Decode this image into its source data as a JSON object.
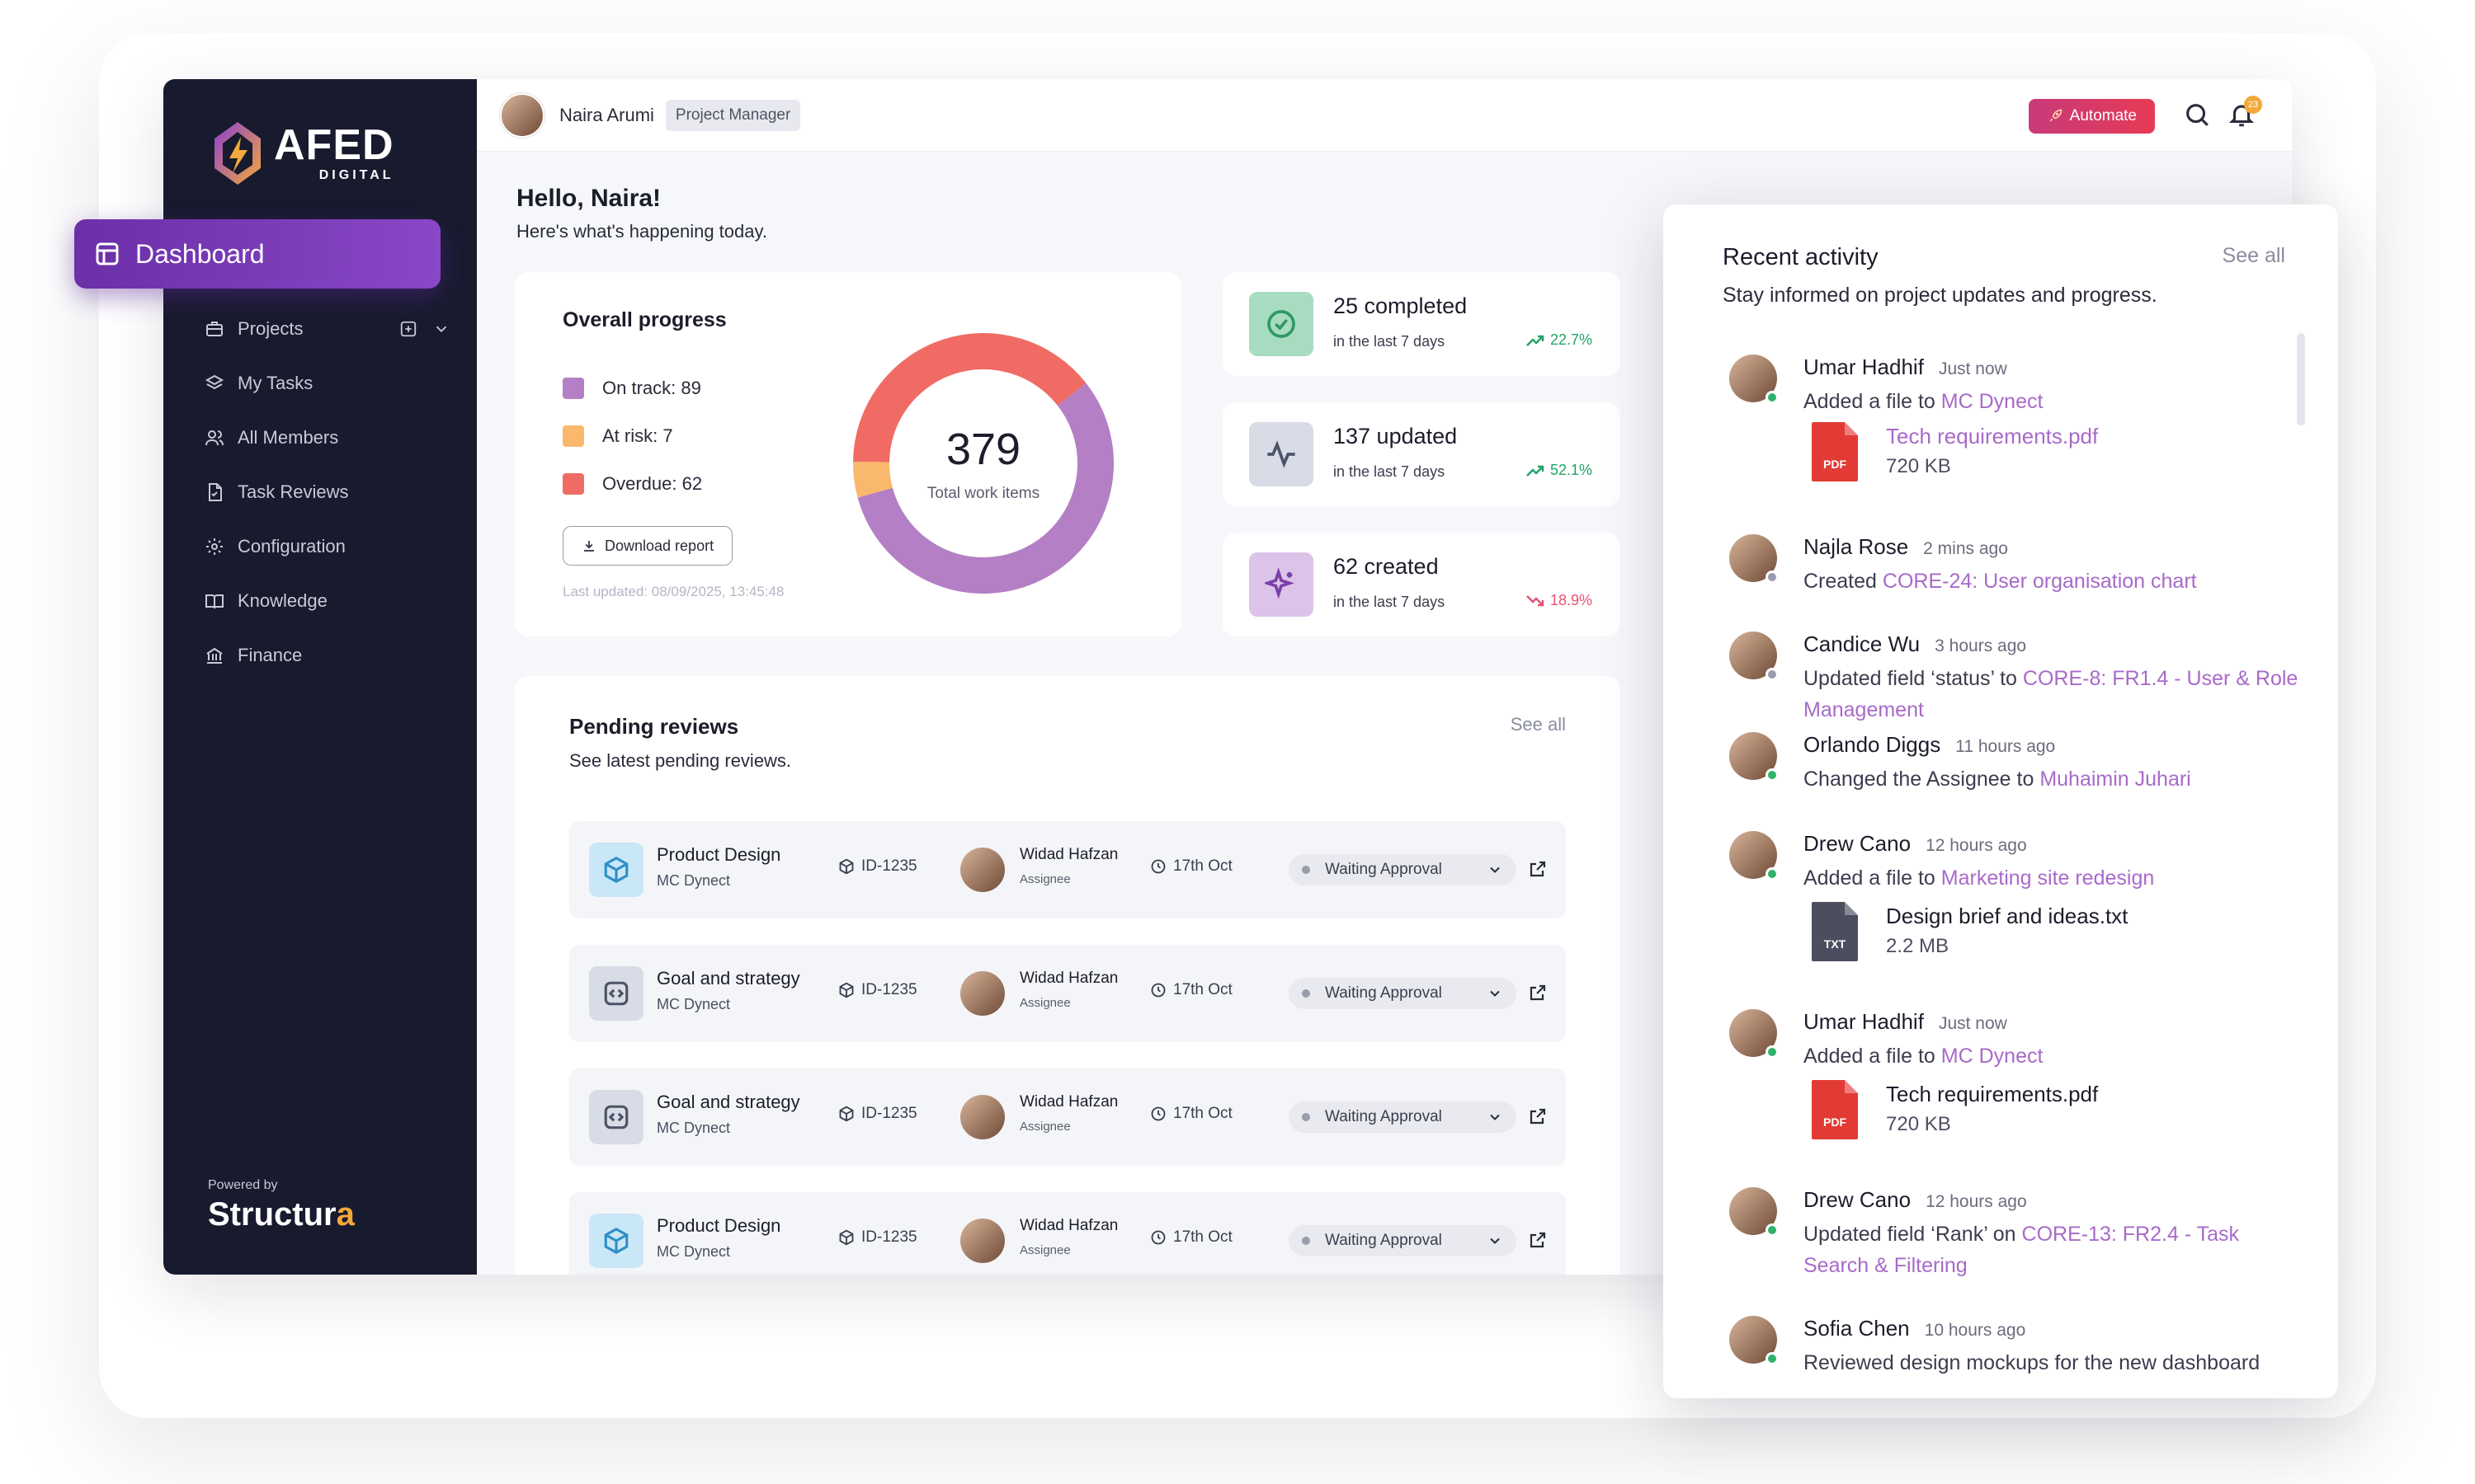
{
  "brand": {
    "name": "AFED",
    "tagline": "DIGITAL",
    "powered_by_label": "Powered by",
    "powered_by_name": "Structur",
    "powered_by_accent": "a"
  },
  "nav": {
    "active": "Dashboard",
    "items": [
      {
        "label": "Projects",
        "icon": "briefcase-icon"
      },
      {
        "label": "My Tasks",
        "icon": "layers-icon"
      },
      {
        "label": "All Members",
        "icon": "users-icon"
      },
      {
        "label": "Task Reviews",
        "icon": "file-check-icon"
      },
      {
        "label": "Configuration",
        "icon": "gear-icon"
      },
      {
        "label": "Knowledge",
        "icon": "book-icon"
      },
      {
        "label": "Finance",
        "icon": "bank-icon"
      }
    ]
  },
  "topbar": {
    "user_name": "Naira Arumi",
    "role": "Project Manager",
    "automate_label": "Automate",
    "notification_count": "23"
  },
  "greeting": {
    "title": "Hello, Naira!",
    "subtitle": "Here's what's happening today."
  },
  "progress": {
    "title": "Overall progress",
    "legend": [
      {
        "label": "On track: 89",
        "color": "#b47fc4"
      },
      {
        "label": "At risk: 7",
        "color": "#f9b86c"
      },
      {
        "label": "Overdue: 62",
        "color": "#ef6b64"
      }
    ],
    "download_label": "Download report",
    "last_updated": "Last updated: 08/09/2025, 13:45:48",
    "total": "379",
    "total_label": "Total work items",
    "chart_data": {
      "type": "pie",
      "categories": [
        "On track",
        "At risk",
        "Overdue"
      ],
      "values": [
        89,
        7,
        62
      ],
      "colors": [
        "#b47fc4",
        "#f9b86c",
        "#ef6b64"
      ]
    }
  },
  "stats": [
    {
      "main": "25 completed",
      "sub": "in the last 7 days",
      "trend": "22.7%",
      "direction": "up",
      "trend_color": "#21a366",
      "icon": "check-circle-icon",
      "icon_bg": "#a8dcc0",
      "icon_color": "#2f9a63"
    },
    {
      "main": "137 updated",
      "sub": "in the last 7 days",
      "trend": "52.1%",
      "direction": "up",
      "trend_color": "#21a366",
      "icon": "activity-icon",
      "icon_bg": "#d8dce6",
      "icon_color": "#4d5266"
    },
    {
      "main": "62 created",
      "sub": "in the last 7 days",
      "trend": "18.9%",
      "direction": "down",
      "trend_color": "#e5536f",
      "icon": "sparkle-icon",
      "icon_bg": "#dcc3ea",
      "icon_color": "#7b3fa8"
    }
  ],
  "pending": {
    "title": "Pending reviews",
    "subtitle": "See latest pending reviews.",
    "see_all": "See all",
    "rows": [
      {
        "name": "Product Design",
        "project": "MC Dynect",
        "id": "ID-1235",
        "assignee": "Widad Hafzan",
        "assignee_role": "Assignee",
        "date": "17th Oct",
        "status": "Waiting Approval",
        "icon": "cube-icon",
        "icon_bg": "#c9e7f7",
        "icon_color": "#2f8fc7"
      },
      {
        "name": "Goal and strategy",
        "project": "MC Dynect",
        "id": "ID-1235",
        "assignee": "Widad Hafzan",
        "assignee_role": "Assignee",
        "date": "17th Oct",
        "status": "Waiting Approval",
        "icon": "code-icon",
        "icon_bg": "#d8dce6",
        "icon_color": "#4d5266"
      },
      {
        "name": "Goal and strategy",
        "project": "MC Dynect",
        "id": "ID-1235",
        "assignee": "Widad Hafzan",
        "assignee_role": "Assignee",
        "date": "17th Oct",
        "status": "Waiting Approval",
        "icon": "code-icon",
        "icon_bg": "#d8dce6",
        "icon_color": "#4d5266"
      },
      {
        "name": "Product Design",
        "project": "MC Dynect",
        "id": "ID-1235",
        "assignee": "Widad Hafzan",
        "assignee_role": "Assignee",
        "date": "17th Oct",
        "status": "Waiting Approval",
        "icon": "cube-icon",
        "icon_bg": "#c9e7f7",
        "icon_color": "#2f8fc7"
      }
    ]
  },
  "activity": {
    "title": "Recent activity",
    "subtitle": "Stay informed on project updates and progress.",
    "see_all": "See all",
    "items": [
      {
        "name": "Umar Hadhif",
        "time": "Just now",
        "text": "Added a file to ",
        "link": "MC Dynect",
        "online": true,
        "file": {
          "name": "Tech requirements.pdf",
          "size": "720 KB",
          "type": "PDF",
          "linked": true
        }
      },
      {
        "name": "Najla Rose",
        "time": "2 mins ago",
        "text": "Created ",
        "link": "CORE-24: User organisation chart",
        "online": false
      },
      {
        "name": "Candice Wu",
        "time": "3 hours ago",
        "text": "Updated field ‘status’ to ",
        "link": "CORE-8: FR1.4 - User & Role Management",
        "online": false
      },
      {
        "name": "Orlando Diggs",
        "time": "11 hours ago",
        "text": "Changed the Assignee to ",
        "link": "Muhaimin Juhari",
        "online": true
      },
      {
        "name": "Drew Cano",
        "time": "12 hours ago",
        "text": "Added a file to ",
        "link": "Marketing site redesign",
        "online": true,
        "file": {
          "name": "Design brief and ideas.txt",
          "size": "2.2 MB",
          "type": "TXT",
          "linked": false
        }
      },
      {
        "name": "Umar Hadhif",
        "time": "Just now",
        "text": "Added a file to ",
        "link": "MC Dynect",
        "online": true,
        "file": {
          "name": "Tech requirements.pdf",
          "size": "720 KB",
          "type": "PDF",
          "linked": false
        }
      },
      {
        "name": "Drew Cano",
        "time": "12 hours ago",
        "text": "Updated field ‘Rank’ on ",
        "link": "CORE-13: FR2.4 - Task Search & Filtering",
        "online": true
      },
      {
        "name": "Sofia Chen",
        "time": "10 hours ago",
        "text": "Reviewed design mockups for the new dashboard",
        "link": "",
        "online": true
      }
    ]
  }
}
